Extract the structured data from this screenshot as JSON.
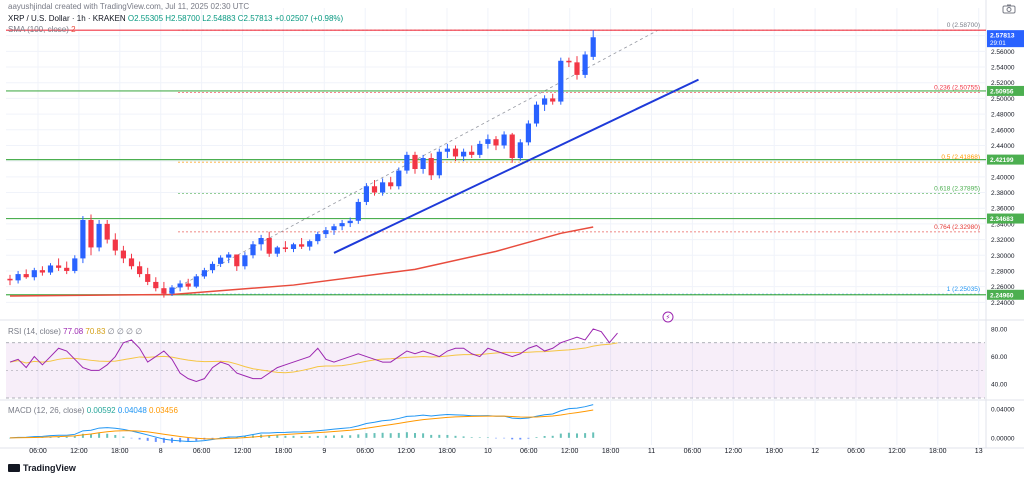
{
  "header": {
    "author_line": "aayushjindal created with TradingView.com, Jul 11, 2025 02:30 UTC",
    "symbol_line": "XRP / U.S. Dollar · 1h · KRAKEN",
    "ohlc": "O2.55305  H2.58700  L2.54883  C2.57813  +0.02507 (+0.98%)",
    "sma_label": "SMA (100, close)",
    "sma_value": "2"
  },
  "rsi_header": {
    "label": "RSI (14, close)",
    "v1": "77.08",
    "v2": "70.83",
    "rest": "∅ ∅ ∅ ∅"
  },
  "macd_header": {
    "label": "MACD (12, 26, close)",
    "v1": "0.00592",
    "v2": "0.04048",
    "v3": "0.03456"
  },
  "price_badge": {
    "price": "2.57813",
    "countdown": "29:01"
  },
  "level_badges": [
    "2.50956",
    "2.42199",
    "2.34683",
    "2.24960"
  ],
  "watermark": "TradingView",
  "colors": {
    "up": "#2962ff",
    "down": "#f23645",
    "sma": "#e84c3d",
    "trend": "#1e3ad9",
    "support": "#4caf50",
    "rsi_line": "#9c27b0",
    "rsi_ma": "#f5c542",
    "macd_line": "#2196f3",
    "signal_line": "#ff9800",
    "hist_pos": "#26a69a",
    "hist_neg": "#2962ff"
  },
  "chart_data": [
    {
      "type": "candlestick",
      "title": "XRP / U.S. Dollar · 1h · KRAKEN",
      "ylim": [
        2.22,
        2.6
      ],
      "y_ticks": [
        "2.58000",
        "2.56000",
        "2.54000",
        "2.52000",
        "2.50000",
        "2.48000",
        "2.46000",
        "2.44000",
        "2.42000",
        "2.40000",
        "2.38000",
        "2.36000",
        "2.34000",
        "2.32000",
        "2.30000",
        "2.28000",
        "2.26000",
        "2.24000"
      ],
      "x_ticks": [
        "06:00",
        "12:00",
        "18:00",
        "8",
        "06:00",
        "12:00",
        "18:00",
        "9",
        "06:00",
        "12:00",
        "18:00",
        "10",
        "06:00",
        "12:00",
        "18:00",
        "11",
        "06:00",
        "12:00",
        "18:00",
        "12",
        "06:00",
        "12:00",
        "18:00",
        "13"
      ],
      "candles": [
        [
          2.27,
          2.275,
          2.262,
          2.268
        ],
        [
          2.268,
          2.28,
          2.264,
          2.276
        ],
        [
          2.276,
          2.282,
          2.27,
          2.272
        ],
        [
          2.272,
          2.284,
          2.268,
          2.281
        ],
        [
          2.281,
          2.286,
          2.274,
          2.278
        ],
        [
          2.278,
          2.29,
          2.275,
          2.287
        ],
        [
          2.287,
          2.296,
          2.28,
          2.284
        ],
        [
          2.284,
          2.292,
          2.276,
          2.28
        ],
        [
          2.28,
          2.3,
          2.277,
          2.296
        ],
        [
          2.296,
          2.35,
          2.29,
          2.345
        ],
        [
          2.345,
          2.352,
          2.3,
          2.31
        ],
        [
          2.31,
          2.345,
          2.305,
          2.34
        ],
        [
          2.34,
          2.345,
          2.315,
          2.32
        ],
        [
          2.32,
          2.328,
          2.3,
          2.306
        ],
        [
          2.306,
          2.312,
          2.29,
          2.296
        ],
        [
          2.296,
          2.302,
          2.282,
          2.286
        ],
        [
          2.286,
          2.292,
          2.272,
          2.276
        ],
        [
          2.276,
          2.284,
          2.262,
          2.266
        ],
        [
          2.266,
          2.272,
          2.254,
          2.258
        ],
        [
          2.258,
          2.266,
          2.246,
          2.251
        ],
        [
          2.251,
          2.262,
          2.248,
          2.259
        ],
        [
          2.259,
          2.268,
          2.254,
          2.264
        ],
        [
          2.264,
          2.27,
          2.256,
          2.26
        ],
        [
          2.26,
          2.276,
          2.258,
          2.273
        ],
        [
          2.273,
          2.284,
          2.27,
          2.281
        ],
        [
          2.281,
          2.292,
          2.277,
          2.289
        ],
        [
          2.289,
          2.3,
          2.285,
          2.297
        ],
        [
          2.297,
          2.304,
          2.29,
          2.301
        ],
        [
          2.301,
          2.298,
          2.28,
          2.286
        ],
        [
          2.286,
          2.304,
          2.282,
          2.3
        ],
        [
          2.3,
          2.318,
          2.296,
          2.314
        ],
        [
          2.314,
          2.326,
          2.306,
          2.322
        ],
        [
          2.322,
          2.33,
          2.298,
          2.302
        ],
        [
          2.302,
          2.312,
          2.298,
          2.31
        ],
        [
          2.31,
          2.318,
          2.304,
          2.308
        ],
        [
          2.308,
          2.316,
          2.304,
          2.314
        ],
        [
          2.314,
          2.322,
          2.308,
          2.311
        ],
        [
          2.311,
          2.32,
          2.306,
          2.318
        ],
        [
          2.318,
          2.33,
          2.314,
          2.327
        ],
        [
          2.327,
          2.336,
          2.322,
          2.332
        ],
        [
          2.332,
          2.34,
          2.326,
          2.337
        ],
        [
          2.337,
          2.345,
          2.332,
          2.341
        ],
        [
          2.341,
          2.348,
          2.336,
          2.344
        ],
        [
          2.344,
          2.372,
          2.34,
          2.368
        ],
        [
          2.368,
          2.392,
          2.364,
          2.388
        ],
        [
          2.388,
          2.396,
          2.376,
          2.38
        ],
        [
          2.38,
          2.398,
          2.376,
          2.393
        ],
        [
          2.393,
          2.4,
          2.384,
          2.388
        ],
        [
          2.388,
          2.412,
          2.384,
          2.408
        ],
        [
          2.408,
          2.432,
          2.404,
          2.428
        ],
        [
          2.428,
          2.432,
          2.404,
          2.41
        ],
        [
          2.41,
          2.428,
          2.404,
          2.424
        ],
        [
          2.424,
          2.43,
          2.396,
          2.402
        ],
        [
          2.402,
          2.436,
          2.398,
          2.432
        ],
        [
          2.432,
          2.442,
          2.424,
          2.436
        ],
        [
          2.436,
          2.44,
          2.42,
          2.426
        ],
        [
          2.426,
          2.436,
          2.42,
          2.432
        ],
        [
          2.432,
          2.44,
          2.424,
          2.428
        ],
        [
          2.428,
          2.446,
          2.424,
          2.442
        ],
        [
          2.442,
          2.454,
          2.436,
          2.448
        ],
        [
          2.448,
          2.452,
          2.434,
          2.44
        ],
        [
          2.44,
          2.458,
          2.436,
          2.454
        ],
        [
          2.454,
          2.456,
          2.418,
          2.424
        ],
        [
          2.424,
          2.448,
          2.42,
          2.444
        ],
        [
          2.444,
          2.472,
          2.44,
          2.468
        ],
        [
          2.468,
          2.496,
          2.464,
          2.492
        ],
        [
          2.492,
          2.504,
          2.484,
          2.5
        ],
        [
          2.5,
          2.506,
          2.492,
          2.496
        ],
        [
          2.496,
          2.552,
          2.492,
          2.548
        ],
        [
          2.548,
          2.552,
          2.54,
          2.546
        ],
        [
          2.546,
          2.554,
          2.524,
          2.53
        ],
        [
          2.53,
          2.56,
          2.526,
          2.556
        ],
        [
          2.553,
          2.587,
          2.549,
          2.578
        ]
      ],
      "sma_100": [
        [
          0,
          2.248
        ],
        [
          20,
          2.25
        ],
        [
          35,
          2.262
        ],
        [
          50,
          2.282
        ],
        [
          60,
          2.305
        ],
        [
          68,
          2.328
        ],
        [
          72,
          2.336
        ]
      ],
      "trendline": [
        [
          40,
          2.303
        ],
        [
          85,
          2.524
        ]
      ],
      "fib_levels": [
        {
          "ratio": "0",
          "price": "2.58700",
          "value": 2.587
        },
        {
          "ratio": "0.236",
          "price": "2.50755",
          "value": 2.50755
        },
        {
          "ratio": "0.5",
          "price": "2.41868",
          "value": 2.41868
        },
        {
          "ratio": "0.618",
          "price": "2.37895",
          "value": 2.37895
        },
        {
          "ratio": "0.764",
          "price": "2.32980",
          "value": 2.3298
        },
        {
          "ratio": "1",
          "price": "2.25035",
          "value": 2.25035
        }
      ],
      "horizontal_levels": [
        2.587,
        2.50956,
        2.42199,
        2.34683,
        2.2496
      ]
    },
    {
      "type": "line",
      "title": "RSI (14, close)",
      "ylim": [
        30,
        85
      ],
      "y_ticks": [
        "80.00",
        "60.00",
        "40.00"
      ],
      "band": [
        30,
        70
      ],
      "series": [
        {
          "name": "RSI",
          "values": [
            56,
            58,
            52,
            60,
            54,
            60,
            66,
            64,
            58,
            52,
            50,
            50,
            54,
            60,
            70,
            72,
            66,
            56,
            60,
            64,
            58,
            48,
            44,
            42,
            44,
            52,
            56,
            54,
            48,
            46,
            44,
            44,
            48,
            52,
            54,
            56,
            58,
            60,
            66,
            58,
            56,
            58,
            60,
            62,
            60,
            58,
            56,
            56,
            60,
            64,
            62,
            64,
            62,
            60,
            64,
            66,
            66,
            62,
            60,
            66,
            64,
            62,
            60,
            62,
            66,
            68,
            64,
            66,
            70,
            72,
            74,
            72,
            80,
            78,
            70,
            77
          ]
        }
      ]
    },
    {
      "type": "line",
      "title": "MACD (12, 26, close)",
      "ylim": [
        -0.01,
        0.05
      ],
      "y_ticks": [
        "0.04000",
        "0.00000"
      ]
    }
  ]
}
